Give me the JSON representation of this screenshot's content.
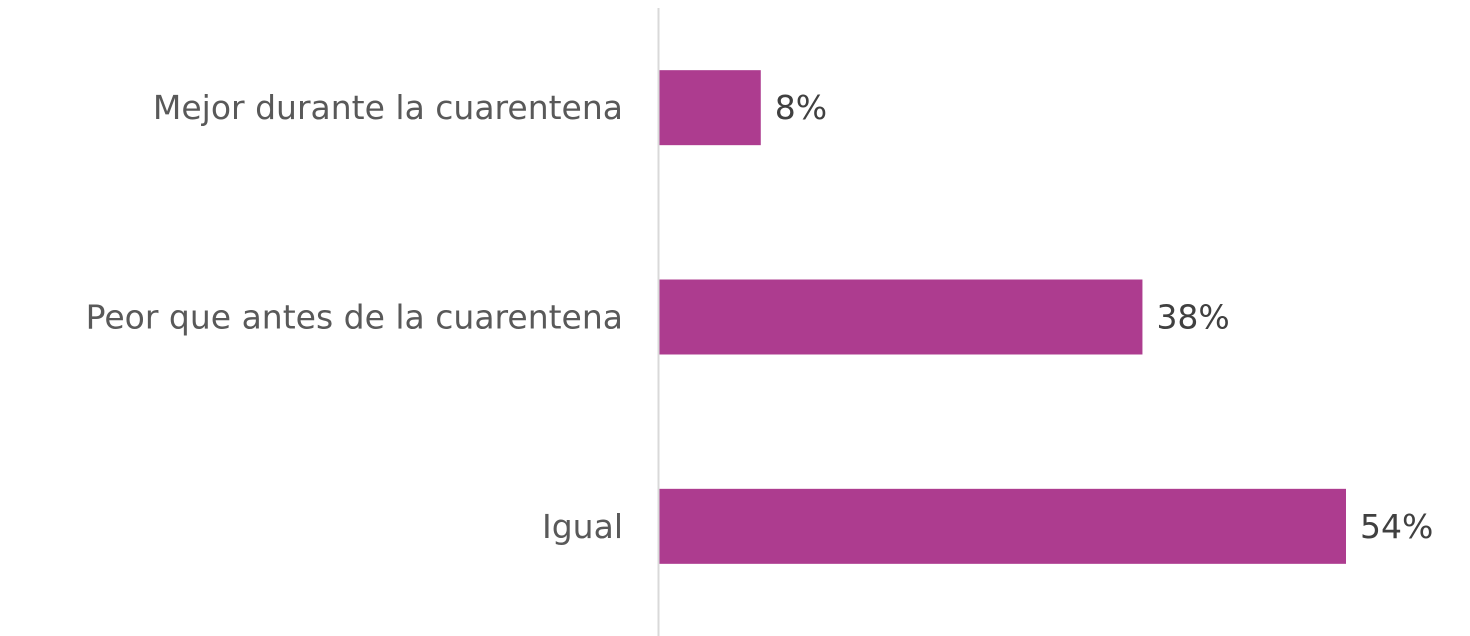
{
  "chart_data": {
    "type": "bar",
    "orientation": "horizontal",
    "categories": [
      "Mejor durante la cuarentena",
      "Peor que antes de la cuarentena",
      "Igual"
    ],
    "values": [
      8,
      38,
      54
    ],
    "value_labels": [
      "8%",
      "38%",
      "54%"
    ],
    "unit": "%",
    "xlim": [
      0,
      54
    ],
    "grid": false,
    "legend": "none",
    "bar_color": "#ad3c8f",
    "axis_color": "#d9d9d9"
  }
}
